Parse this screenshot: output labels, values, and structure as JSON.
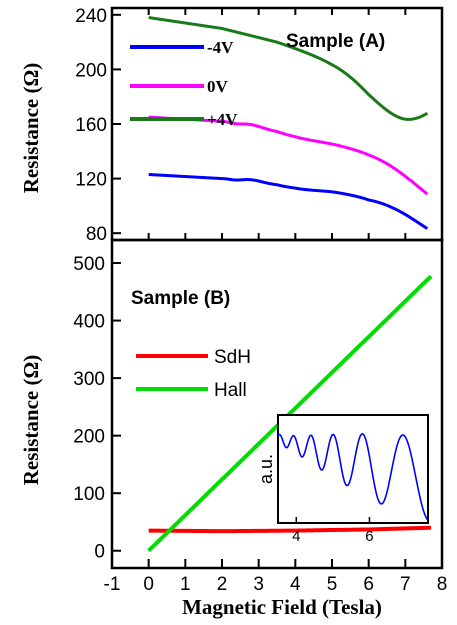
{
  "chart_data": [
    {
      "type": "line",
      "panel": "A",
      "title": "Sample (A)",
      "xlabel": "",
      "ylabel": "Resistance (Ω)",
      "xlim": [
        -1,
        8
      ],
      "ylim": [
        75,
        245
      ],
      "yticks": [
        80,
        120,
        160,
        200,
        240
      ],
      "legend_placement": "top-left",
      "series": [
        {
          "name": "-4V",
          "color": "#0000ff",
          "base": [
            [
              0.0,
              123
            ],
            [
              2.0,
              120
            ],
            [
              3.5,
              117
            ],
            [
              5.0,
              108
            ],
            [
              6.0,
              101
            ],
            [
              7.0,
              98
            ],
            [
              7.6,
              96
            ]
          ],
          "osc_amplitude": [
            [
              2.0,
              0
            ],
            [
              4.0,
              2
            ],
            [
              5.5,
              8
            ],
            [
              6.5,
              13
            ],
            [
              7.6,
              17
            ]
          ],
          "osc_freq": 58
        },
        {
          "name": "0V",
          "color": "#ff00ff",
          "base": [
            [
              0.0,
              165
            ],
            [
              2.0,
              162
            ],
            [
              3.5,
              156
            ],
            [
              5.0,
              143
            ],
            [
              6.0,
              134
            ],
            [
              7.0,
              126
            ],
            [
              7.6,
              122
            ]
          ],
          "osc_amplitude": [
            [
              2.0,
              0
            ],
            [
              4.0,
              2
            ],
            [
              5.5,
              8
            ],
            [
              6.5,
              13
            ],
            [
              7.6,
              18
            ]
          ],
          "osc_freq": 58
        },
        {
          "name": "+4V",
          "color": "#1a7a1a",
          "base": [
            [
              0.0,
              238
            ],
            [
              2.0,
              230
            ],
            [
              3.5,
              220
            ],
            [
              5.0,
              201
            ],
            [
              6.0,
              188
            ],
            [
              7.0,
              178
            ],
            [
              7.6,
              172
            ]
          ],
          "osc_amplitude": [
            [
              3.5,
              0
            ],
            [
              5.0,
              5
            ],
            [
              6.0,
              11
            ],
            [
              7.0,
              16
            ],
            [
              7.6,
              18
            ]
          ],
          "osc_freq": 26
        }
      ]
    },
    {
      "type": "line",
      "panel": "B",
      "title": "Sample (B)",
      "xlabel": "Magnetic Field (Tesla)",
      "ylabel": "Resistance (Ω)",
      "xlim": [
        -1,
        8
      ],
      "ylim": [
        -30,
        540
      ],
      "xticks": [
        -1,
        0,
        1,
        2,
        3,
        4,
        5,
        6,
        7,
        8
      ],
      "yticks": [
        0,
        100,
        200,
        300,
        400,
        500
      ],
      "legend_placement": "center-left",
      "series": [
        {
          "name": "SdH",
          "color": "#ff0000",
          "x": [
            0,
            2,
            4,
            6,
            7.7
          ],
          "y": [
            35,
            34,
            35,
            37,
            40
          ]
        },
        {
          "name": "Hall",
          "color": "#00dd00",
          "x": [
            0,
            7.7
          ],
          "y": [
            0,
            477
          ]
        }
      ],
      "inset": {
        "ylabel": "a.u.",
        "xlim": [
          3.5,
          7.6
        ],
        "xticks": [
          4,
          6
        ],
        "color": "#0000ff",
        "envelope_center": [
          [
            3.5,
            0.78
          ],
          [
            5.0,
            0.62
          ],
          [
            6.5,
            0.48
          ],
          [
            7.6,
            0.42
          ]
        ],
        "amplitude": [
          [
            3.5,
            0.04
          ],
          [
            4.0,
            0.08
          ],
          [
            5.0,
            0.2
          ],
          [
            6.0,
            0.3
          ],
          [
            7.6,
            0.4
          ]
        ],
        "osc_freq": 38
      }
    }
  ],
  "legend_A": [
    "-4V",
    "0V",
    "+4V"
  ],
  "legend_B": [
    "SdH",
    "Hall"
  ]
}
